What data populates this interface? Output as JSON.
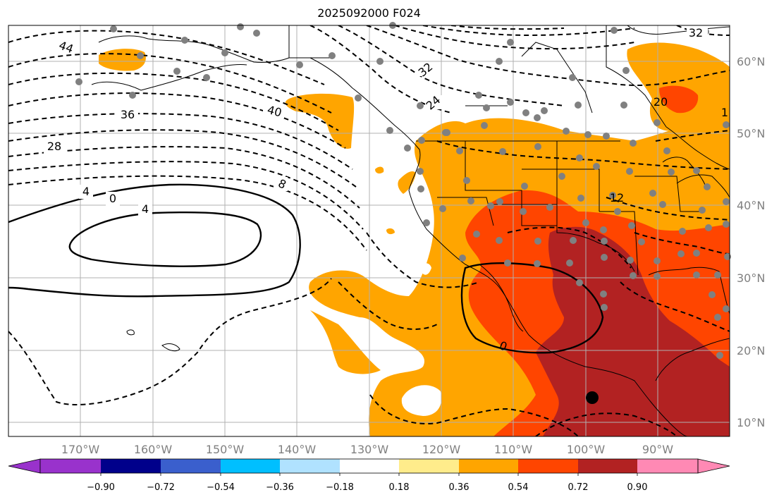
{
  "title": "2025092000 F024",
  "map": {
    "lat_labels": [
      "60°N",
      "50°N",
      "40°N",
      "30°N",
      "20°N",
      "10°N"
    ],
    "lon_labels": [
      "170°W",
      "160°W",
      "150°W",
      "140°W",
      "130°W",
      "120°W",
      "110°W",
      "100°W",
      "90°W"
    ],
    "contour_labels": [
      "44",
      "36",
      "28",
      "40",
      "32",
      "24",
      "4",
      "0",
      "4",
      "8",
      "12",
      "20",
      "32",
      "0",
      "1"
    ],
    "colors": {
      "orange": "#ffa500",
      "red_orange": "#ff4500",
      "dark_red": "#b22222",
      "land_line": "#000000",
      "grid": "#b0b0b0",
      "station": "#808080"
    }
  },
  "colorbar": {
    "ticks": [
      "−0.90",
      "−0.72",
      "−0.54",
      "−0.36",
      "−0.18",
      "0.18",
      "0.36",
      "0.54",
      "0.72",
      "0.90"
    ],
    "colors": [
      "#9932cc",
      "#00008b",
      "#3a5fcd",
      "#00bfff",
      "#b0e2ff",
      "#ffffff",
      "#ffec8b",
      "#ffa500",
      "#ff4500",
      "#b22222",
      "#ff89b4"
    ]
  }
}
